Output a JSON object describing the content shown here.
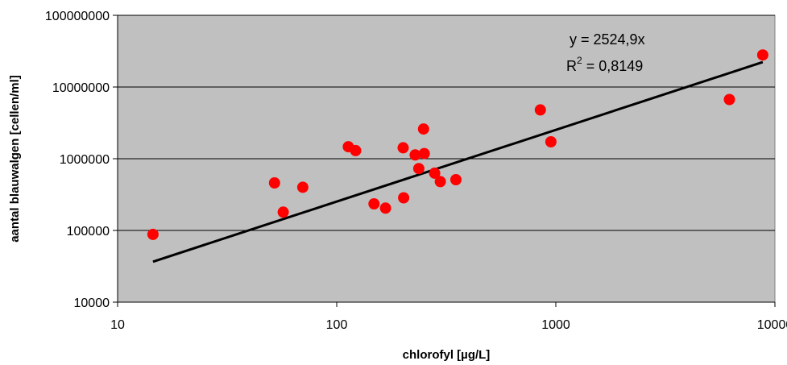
{
  "chart_data": {
    "type": "scatter",
    "xscale": "log",
    "yscale": "log",
    "xlim": [
      10,
      10000
    ],
    "ylim": [
      10000,
      100000000
    ],
    "xlabel": "chlorofyl [µg/L]",
    "ylabel": "aantal blauwalgen [cellen/ml]",
    "x_ticks": [
      "10",
      "100",
      "1000",
      "10000"
    ],
    "y_ticks": [
      "10000",
      "100000",
      "1000000",
      "10000000",
      "100000000"
    ],
    "grid": "horizontal major gridlines",
    "plot_background": "#c0c0c0",
    "point_color": "#ff0000",
    "trendline_color": "#000000",
    "points": [
      {
        "x": 14.5,
        "y": 88000
      },
      {
        "x": 52,
        "y": 460000
      },
      {
        "x": 57,
        "y": 180000
      },
      {
        "x": 70,
        "y": 400000
      },
      {
        "x": 113,
        "y": 1470000
      },
      {
        "x": 122,
        "y": 1300000
      },
      {
        "x": 148,
        "y": 235000
      },
      {
        "x": 167,
        "y": 205000
      },
      {
        "x": 201,
        "y": 1420000
      },
      {
        "x": 202,
        "y": 285000
      },
      {
        "x": 228,
        "y": 1130000
      },
      {
        "x": 237,
        "y": 730000
      },
      {
        "x": 249,
        "y": 2600000
      },
      {
        "x": 251,
        "y": 1180000
      },
      {
        "x": 280,
        "y": 630000
      },
      {
        "x": 297,
        "y": 480000
      },
      {
        "x": 350,
        "y": 510000
      },
      {
        "x": 850,
        "y": 4800000
      },
      {
        "x": 950,
        "y": 1720000
      },
      {
        "x": 6200,
        "y": 6700000
      },
      {
        "x": 8800,
        "y": 28000000
      }
    ],
    "trendline": {
      "slope": 2524.9,
      "x_range": [
        14.5,
        8800
      ],
      "equation": "y = 2524,9x",
      "r2_label": "R",
      "r2_sup": "2",
      "r2_value": " = 0,8149"
    }
  }
}
